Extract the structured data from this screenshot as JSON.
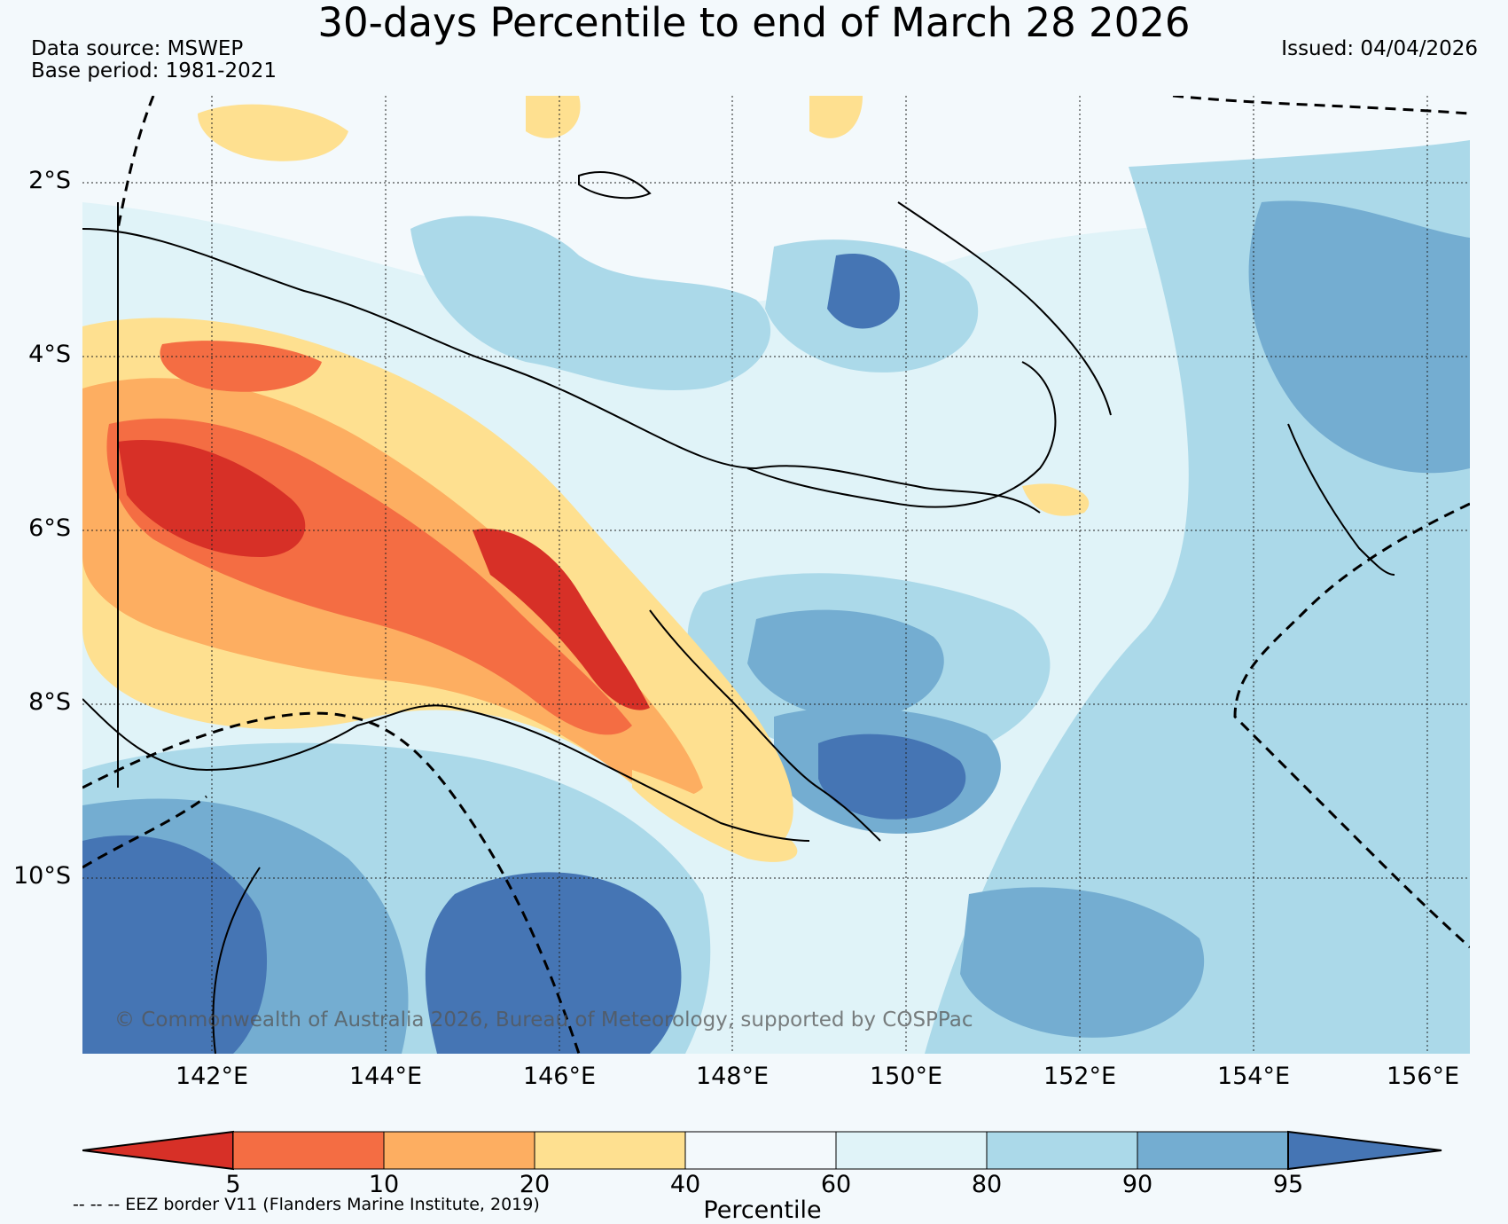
{
  "title": "30-days Percentile to end of March 28 2026",
  "data_source": "Data source: MSWEP",
  "base_period": "Base period: 1981-2021",
  "issued": "Issued: 04/04/2026",
  "copyright": "© Commonwealth of Australia 2026, Bureau of Meteorology, supported by COSPPac",
  "eez_note": "-- -- -- EEZ border V11 (Flanders Marine Institute, 2019)",
  "map": {
    "lat_labels": [
      "2°S",
      "4°S",
      "6°S",
      "8°S",
      "10°S"
    ],
    "lon_labels": [
      "142°E",
      "144°E",
      "146°E",
      "148°E",
      "150°E",
      "152°E",
      "154°E",
      "156°E"
    ],
    "lat_range": [
      -12,
      -1
    ],
    "lon_range": [
      140.5,
      156.5
    ]
  },
  "legend": {
    "title": "Percentile",
    "ticks": [
      "5",
      "10",
      "20",
      "40",
      "60",
      "80",
      "90",
      "95"
    ],
    "colors": [
      "#d73027",
      "#f46d43",
      "#fdae61",
      "#fee090",
      "#f3f9fc",
      "#e0f3f8",
      "#abd9e9",
      "#74add1",
      "#4575b4"
    ]
  }
}
